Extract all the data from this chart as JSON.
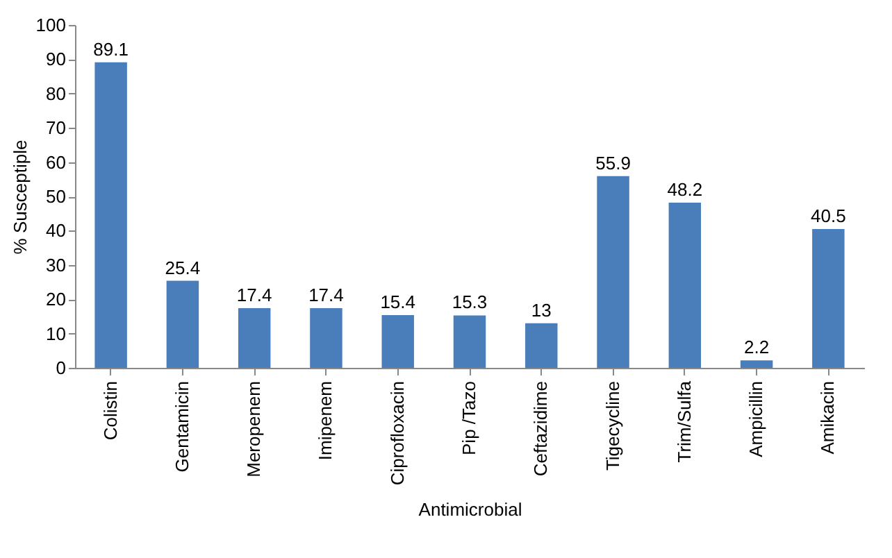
{
  "chart_data": {
    "type": "bar",
    "xlabel": "Antimicrobial",
    "ylabel": "% Susceptiple",
    "categories": [
      "Colistin",
      "Gentamicin",
      "Meropenem",
      "Imipenem",
      "Ciprofloxacin",
      "Pip /Tazo",
      "Ceftazidime",
      "Tigecycline",
      "Trim/Sulfa",
      "Ampicillin",
      "Amikacin"
    ],
    "values": [
      89.1,
      25.4,
      17.4,
      17.4,
      15.4,
      15.3,
      13,
      55.9,
      48.2,
      2.2,
      40.5
    ],
    "color": "#4a7ebb",
    "ylim": [
      0,
      100
    ],
    "yticks": [
      0,
      10,
      20,
      30,
      40,
      50,
      60,
      70,
      80,
      90,
      100
    ],
    "data_labels": true,
    "grid": false
  }
}
